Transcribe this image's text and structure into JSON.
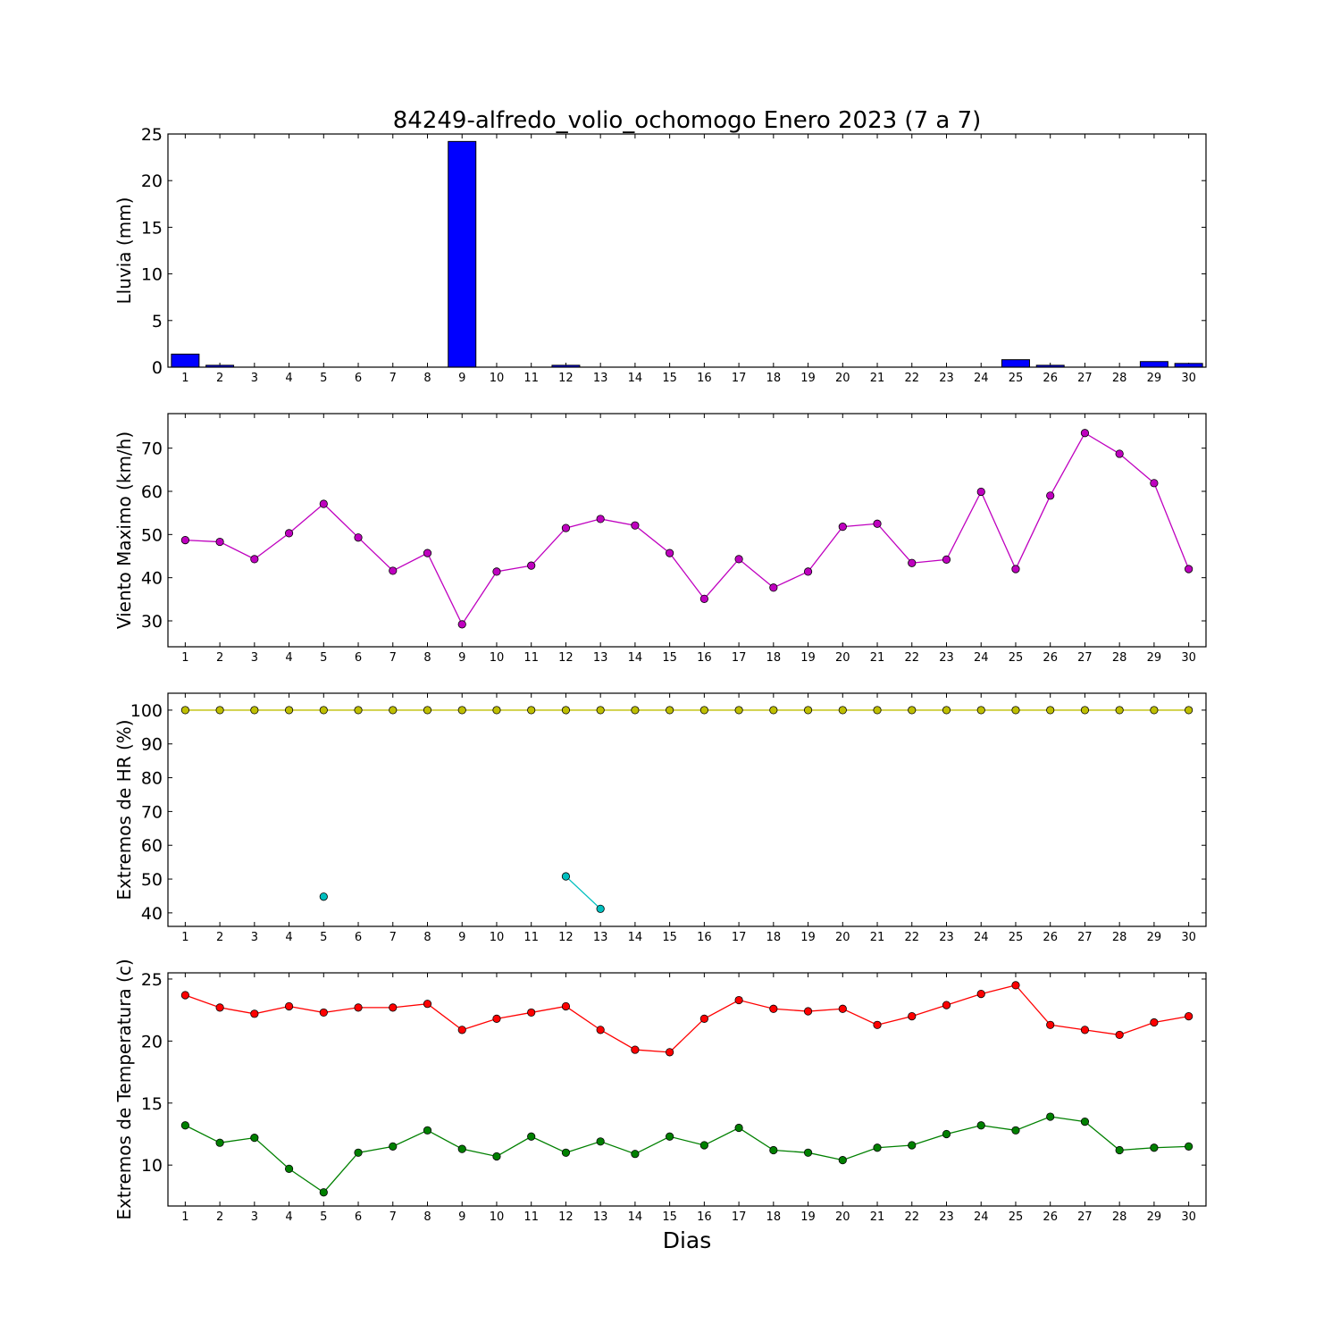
{
  "figure": {
    "title": "84249-alfredo_volio_ochomogo Enero 2023  (7 a 7)",
    "xlabel": "Dias"
  },
  "chart_data": [
    {
      "type": "bar",
      "ylabel": "Lluvia (mm)",
      "ylim": [
        0,
        25
      ],
      "yticks": [
        0,
        5,
        10,
        15,
        20,
        25
      ],
      "xlim": [
        0.5,
        30.5
      ],
      "categories": [
        1,
        2,
        3,
        4,
        5,
        6,
        7,
        8,
        9,
        10,
        11,
        12,
        13,
        14,
        15,
        16,
        17,
        18,
        19,
        20,
        21,
        22,
        23,
        24,
        25,
        26,
        27,
        28,
        29,
        30
      ],
      "series": [
        {
          "color": "#0000ff",
          "values": [
            1.4,
            0.2,
            0,
            0,
            0,
            0,
            0,
            0,
            24.2,
            0,
            0,
            0.2,
            0,
            0,
            0,
            0,
            0,
            0,
            0,
            0,
            0,
            0,
            0,
            0,
            0.8,
            0.2,
            0,
            0,
            0.6,
            0.4
          ]
        }
      ],
      "grid": false
    },
    {
      "type": "line",
      "ylabel": "Viento Maximo (km/h)",
      "ylim": [
        24,
        78
      ],
      "yticks": [
        30,
        40,
        50,
        60,
        70
      ],
      "xlim": [
        0.5,
        30.5
      ],
      "x": [
        1,
        2,
        3,
        4,
        5,
        6,
        7,
        8,
        9,
        10,
        11,
        12,
        13,
        14,
        15,
        16,
        17,
        18,
        19,
        20,
        21,
        22,
        23,
        24,
        25,
        26,
        27,
        28,
        29,
        30
      ],
      "series": [
        {
          "color": "#bf00bf",
          "values": [
            48.7,
            48.3,
            44.3,
            50.3,
            57.1,
            49.3,
            41.6,
            45.7,
            29.2,
            41.4,
            42.8,
            51.5,
            53.6,
            52.1,
            45.7,
            35.1,
            44.3,
            37.7,
            41.4,
            51.8,
            52.5,
            43.4,
            44.2,
            59.9,
            42.0,
            59.0,
            73.5,
            68.7,
            61.9,
            42.0
          ]
        }
      ],
      "grid": false
    },
    {
      "type": "line",
      "ylabel": "Extremos de HR (%)",
      "ylim": [
        36,
        105
      ],
      "yticks": [
        40,
        50,
        60,
        70,
        80,
        90,
        100
      ],
      "xlim": [
        0.5,
        30.5
      ],
      "x": [
        1,
        2,
        3,
        4,
        5,
        6,
        7,
        8,
        9,
        10,
        11,
        12,
        13,
        14,
        15,
        16,
        17,
        18,
        19,
        20,
        21,
        22,
        23,
        24,
        25,
        26,
        27,
        28,
        29,
        30
      ],
      "series": [
        {
          "color": "#bfbf00",
          "values": [
            100,
            100,
            100,
            100,
            100,
            100,
            100,
            100,
            100,
            100,
            100,
            100,
            100,
            100,
            100,
            100,
            100,
            100,
            100,
            100,
            100,
            100,
            100,
            100,
            100,
            100,
            100,
            100,
            100,
            100
          ]
        },
        {
          "color": "#00bfbf",
          "values": [
            null,
            null,
            null,
            null,
            44.8,
            null,
            null,
            null,
            null,
            null,
            null,
            50.8,
            41.2,
            null,
            null,
            null,
            null,
            null,
            null,
            null,
            null,
            null,
            null,
            null,
            null,
            null,
            null,
            null,
            null,
            null
          ]
        }
      ],
      "grid": false
    },
    {
      "type": "line",
      "ylabel": "Extremos de Temperatura (c)",
      "ylim": [
        6.7,
        25.5
      ],
      "yticks": [
        10,
        15,
        20,
        25
      ],
      "xlim": [
        0.5,
        30.5
      ],
      "x": [
        1,
        2,
        3,
        4,
        5,
        6,
        7,
        8,
        9,
        10,
        11,
        12,
        13,
        14,
        15,
        16,
        17,
        18,
        19,
        20,
        21,
        22,
        23,
        24,
        25,
        26,
        27,
        28,
        29,
        30
      ],
      "series": [
        {
          "color": "#ff0000",
          "values": [
            23.7,
            22.7,
            22.2,
            22.8,
            22.3,
            22.7,
            22.7,
            23.0,
            20.9,
            21.8,
            22.3,
            22.8,
            20.9,
            19.3,
            19.1,
            21.8,
            23.3,
            22.6,
            22.4,
            22.6,
            21.3,
            22.0,
            22.9,
            23.8,
            24.5,
            21.3,
            20.9,
            20.5,
            21.5,
            22.0
          ]
        },
        {
          "color": "#008000",
          "values": [
            13.2,
            11.8,
            12.2,
            9.7,
            7.8,
            11.0,
            11.5,
            12.8,
            11.3,
            10.7,
            12.3,
            11.0,
            11.9,
            10.9,
            12.3,
            11.6,
            13.0,
            11.2,
            11.0,
            10.4,
            11.4,
            11.6,
            12.5,
            13.2,
            12.8,
            13.9,
            13.5,
            11.2,
            11.4,
            11.5
          ]
        }
      ],
      "grid": false
    }
  ]
}
